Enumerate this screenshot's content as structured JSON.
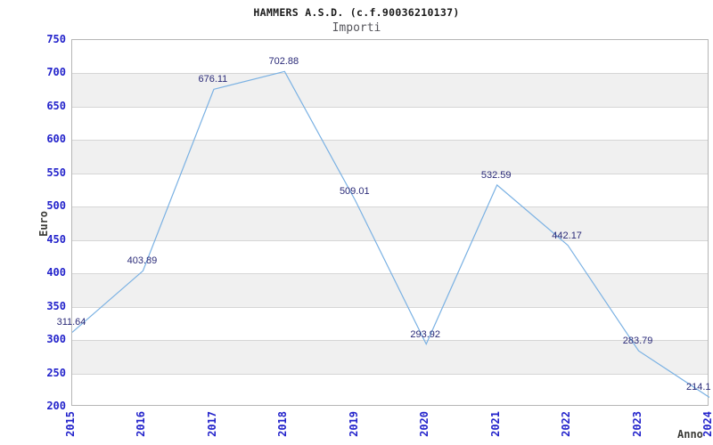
{
  "chart_data": {
    "type": "line",
    "title": "HAMMERS A.S.D. (c.f.90036210137)",
    "subtitle": "Importi",
    "xlabel": "Anno",
    "ylabel": "Euro",
    "categories": [
      "2015",
      "2016",
      "2017",
      "2018",
      "2019",
      "2020",
      "2021",
      "2022",
      "2023",
      "2024"
    ],
    "values": [
      311.64,
      403.89,
      676.11,
      702.88,
      509.01,
      293.92,
      532.59,
      442.17,
      283.79,
      214.1
    ],
    "point_labels": [
      "311.64",
      "403.89",
      "676.11",
      "702.88",
      "509.01",
      "293.92",
      "532.59",
      "442.17",
      "283.79",
      "214.1"
    ],
    "ylim": [
      200,
      750
    ],
    "ytick_step": 50,
    "grid": true,
    "legend": "none",
    "bands_alternating": true,
    "colors": {
      "line": "#7ab1e3",
      "tick_text": "#2323cb",
      "point_label_text": "#2a2a78",
      "band": "#f0f0f0",
      "gridline": "#d6d6d6",
      "plot_border": "#b5b5b5",
      "title_text": "#1a1a1a",
      "subtitle_text": "#56565c",
      "axis_title_text": "#3c3c38",
      "background": "#ffffff"
    }
  }
}
